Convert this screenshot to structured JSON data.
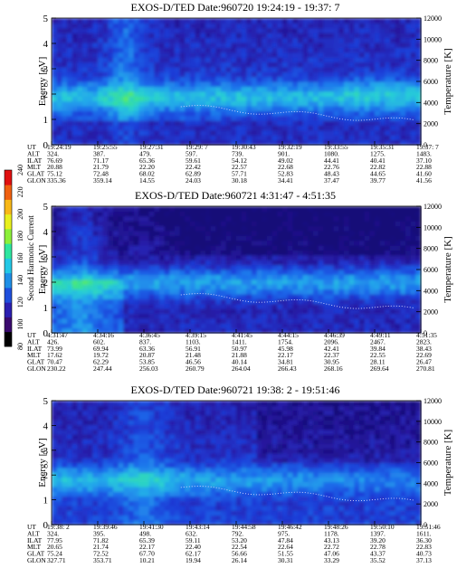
{
  "colorbar": {
    "label": "Second Harmonic Current",
    "ticks": [
      "80",
      "100",
      "120",
      "140",
      "160",
      "180",
      "200",
      "220",
      "240"
    ],
    "colors": [
      "#000000",
      "#3a0a6e",
      "#2b1fb0",
      "#1f4fdc",
      "#1f8fe6",
      "#23c8e6",
      "#2ee6a0",
      "#8cf03a",
      "#e8f01e",
      "#f8b818",
      "#f06010",
      "#e01010"
    ]
  },
  "chart_data": [
    {
      "type": "heatmap",
      "title": "EXOS-D/TED   Date:960720  19:24:19 - 19:37: 7",
      "ylabel": "Energy [eV]",
      "y2label": "Temperature [K]",
      "ylim": [
        0,
        5
      ],
      "y2lim": [
        0,
        12000
      ],
      "yticks": [
        "0",
        "1",
        "2",
        "3",
        "4",
        "5"
      ],
      "y2ticks": [
        "0",
        "2000",
        "4000",
        "6000",
        "8000",
        "10000",
        "12000"
      ],
      "rows": [
        {
          "label": "UT",
          "values": [
            "19:24:19",
            "19:25:55",
            "19:27:31",
            "19:29: 7",
            "19:30:43",
            "19:32:19",
            "19:33:55",
            "19:35:31",
            "19:37: 7"
          ]
        },
        {
          "label": "ALT",
          "values": [
            "324.",
            "387.",
            "479.",
            "597.",
            "739.",
            "901.",
            "1080.",
            "1275.",
            "1483."
          ]
        },
        {
          "label": "ILAT",
          "values": [
            "76.69",
            "71.17",
            "65.36",
            "59.61",
            "54.12",
            "49.02",
            "44.41",
            "40.41",
            "37.10"
          ]
        },
        {
          "label": "MLT",
          "values": [
            "20.88",
            "21.79",
            "22.20",
            "22.42",
            "22.57",
            "22.68",
            "22.76",
            "22.82",
            "22.88"
          ]
        },
        {
          "label": "GLAT",
          "values": [
            "75.12",
            "72.48",
            "68.02",
            "62.89",
            "57.71",
            "52.83",
            "48.43",
            "44.65",
            "41.60"
          ]
        },
        {
          "label": "GLON",
          "values": [
            "335.36",
            "359.14",
            "14.55",
            "24.03",
            "30.18",
            "34.41",
            "37.47",
            "39.77",
            "41.56"
          ]
        }
      ]
    },
    {
      "type": "heatmap",
      "title": "EXOS-D/TED   Date:960721   4:31:47 - 4:51:35",
      "ylabel": "Energy [eV]",
      "y2label": "Temperature [K]",
      "ylim": [
        0,
        5
      ],
      "y2lim": [
        0,
        12000
      ],
      "yticks": [
        "0",
        "1",
        "2",
        "3",
        "4",
        "5"
      ],
      "y2ticks": [
        "0",
        "2000",
        "4000",
        "6000",
        "8000",
        "10000",
        "12000"
      ],
      "rows": [
        {
          "label": "UT",
          "values": [
            "4:31:47",
            "4:34:16",
            "4:36:45",
            "4:39:15",
            "4:41:45",
            "4:44:15",
            "4:46:39",
            "4:49:11",
            "4:51:35"
          ]
        },
        {
          "label": "ALT",
          "values": [
            "426.",
            "602.",
            "837.",
            "1103.",
            "1411.",
            "1754.",
            "2096.",
            "2467.",
            "2823."
          ]
        },
        {
          "label": "ILAT",
          "values": [
            "73.99",
            "69.94",
            "63.36",
            "56.91",
            "50.97",
            "45.98",
            "42.41",
            "39.84",
            "38.43"
          ]
        },
        {
          "label": "MLT",
          "values": [
            "17.62",
            "19.72",
            "20.87",
            "21.48",
            "21.88",
            "22.17",
            "22.37",
            "22.55",
            "22.69"
          ]
        },
        {
          "label": "GLAT",
          "values": [
            "70.47",
            "62.29",
            "53.85",
            "46.56",
            "40.14",
            "34.81",
            "30.95",
            "28.11",
            "26.47"
          ]
        },
        {
          "label": "GLON",
          "values": [
            "230.22",
            "247.44",
            "256.03",
            "260.79",
            "264.04",
            "266.43",
            "268.16",
            "269.64",
            "270.81"
          ]
        }
      ]
    },
    {
      "type": "heatmap",
      "title": "EXOS-D/TED   Date:960721  19:38: 2 - 19:51:46",
      "ylabel": "Energy [eV]",
      "y2label": "Temperature [K]",
      "ylim": [
        0,
        5
      ],
      "y2lim": [
        0,
        12000
      ],
      "yticks": [
        "0",
        "1",
        "2",
        "3",
        "4",
        "5"
      ],
      "y2ticks": [
        "0",
        "2000",
        "4000",
        "6000",
        "8000",
        "10000",
        "12000"
      ],
      "rows": [
        {
          "label": "UT",
          "values": [
            "19:38: 2",
            "19:39:46",
            "19:41:30",
            "19:43:14",
            "19:44:58",
            "19:46:42",
            "19:48:26",
            "19:50:10",
            "19:51:46"
          ]
        },
        {
          "label": "ALT",
          "values": [
            "324.",
            "395.",
            "498.",
            "632.",
            "792.",
            "975.",
            "1178.",
            "1397.",
            "1611."
          ]
        },
        {
          "label": "ILAT",
          "values": [
            "77.95",
            "71.82",
            "65.39",
            "59.11",
            "53.20",
            "47.84",
            "43.13",
            "39.20",
            "36.30"
          ]
        },
        {
          "label": "MLT",
          "values": [
            "20.65",
            "21.74",
            "22.17",
            "22.40",
            "22.54",
            "22.64",
            "22.72",
            "22.78",
            "22.83"
          ]
        },
        {
          "label": "GLAT",
          "values": [
            "75.24",
            "72.52",
            "67.70",
            "62.17",
            "56.66",
            "51.55",
            "47.06",
            "43.37",
            "40.73"
          ]
        },
        {
          "label": "GLON",
          "values": [
            "327.71",
            "353.71",
            "10.21",
            "19.94",
            "26.14",
            "30.31",
            "33.29",
            "35.52",
            "37.13"
          ]
        }
      ]
    }
  ]
}
